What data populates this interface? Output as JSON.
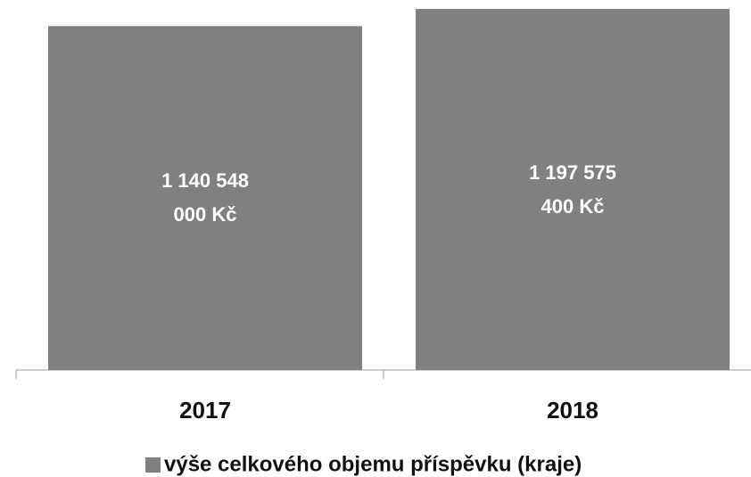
{
  "chart_data": {
    "type": "bar",
    "categories": [
      "2017",
      "2018"
    ],
    "series": [
      {
        "name": "výše celkového objemu příspěvku (kraje)",
        "color": "#808080",
        "values": [
          1140548000,
          1197575400
        ],
        "value_labels": [
          "1 140 548 000 Kč",
          "1 197 575 400 Kč"
        ]
      }
    ]
  }
}
